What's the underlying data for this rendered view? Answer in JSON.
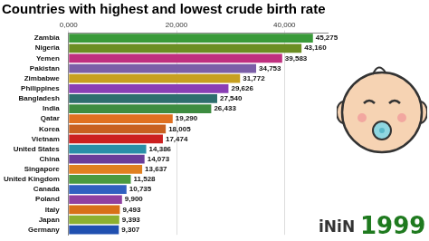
{
  "chart_data": {
    "type": "bar",
    "orientation": "horizontal",
    "title": "Countries with highest and lowest crude birth rate",
    "categories": [
      "Zambia",
      "Nigeria",
      "Yemen",
      "Pakistan",
      "Zimbabwe",
      "Philippines",
      "Bangladesh",
      "India",
      "Qatar",
      "Korea",
      "Vietnam",
      "United States",
      "China",
      "Singapore",
      "United Kingdom",
      "Canada",
      "Poland",
      "Italy",
      "Japan",
      "Germany"
    ],
    "values": [
      45.275,
      43.16,
      39.583,
      34.753,
      31.772,
      29.626,
      27.54,
      26.433,
      19.29,
      18.005,
      17.474,
      14.386,
      14.073,
      13.637,
      11.528,
      10.735,
      9.9,
      9.493,
      9.393,
      9.307
    ],
    "value_labels": [
      "45,275",
      "43,160",
      "39,583",
      "34,753",
      "31,772",
      "29,626",
      "27,540",
      "26,433",
      "19,290",
      "18,005",
      "17,474",
      "14,386",
      "14,073",
      "13,637",
      "11,528",
      "10,735",
      "9,900",
      "9,493",
      "9,393",
      "9,307"
    ],
    "colors": [
      "#3a9a3a",
      "#6b8e23",
      "#c0307f",
      "#7b5ea7",
      "#c7a020",
      "#8a3fb5",
      "#2e6e6e",
      "#3d8c40",
      "#e07020",
      "#c86020",
      "#cc2020",
      "#2a8fa8",
      "#6a3d9a",
      "#e08020",
      "#4a9a40",
      "#3060c0",
      "#9040a0",
      "#d87018",
      "#8db030",
      "#2050b0"
    ],
    "xlim": [
      0,
      48
    ],
    "xticks": [
      {
        "value": 0,
        "label": "0,000"
      },
      {
        "value": 20,
        "label": "20,000"
      },
      {
        "value": 40,
        "label": "40,000"
      }
    ],
    "data_labels": true,
    "grid": true,
    "annotations": [
      "iNiN",
      "1999"
    ]
  }
}
